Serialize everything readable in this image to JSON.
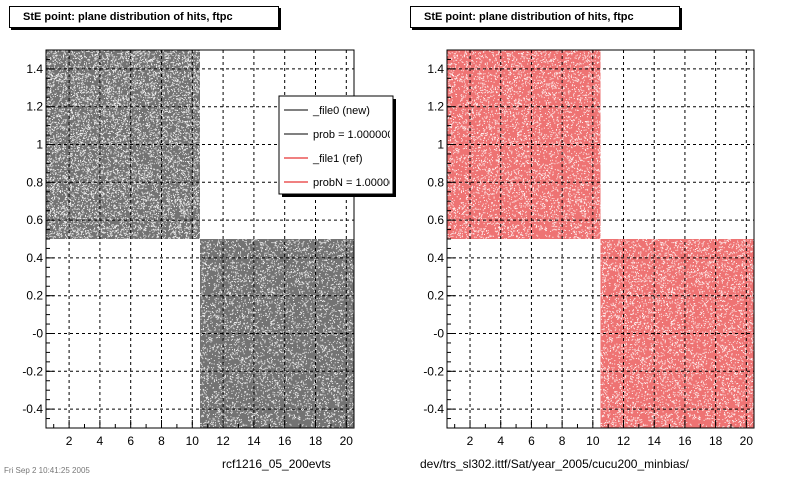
{
  "panels": [
    {
      "title": "StE point: plane distribution of hits, ftpc",
      "footer": "rcf1216_05_200evts",
      "dot_color": "#000000"
    },
    {
      "title": "StE point: plane distribution of hits, ftpc",
      "footer": "dev/trs_sl302.ittf/Sat/year_2005/cucu200_minbias/",
      "dot_color": "#e00000"
    }
  ],
  "legend": {
    "entries": [
      {
        "label": "_file0 (new)",
        "color": "#000000"
      },
      {
        "label": "prob = 1.000000",
        "color": "#000000"
      },
      {
        "label": "_file1 (ref)",
        "color": "#e00000"
      },
      {
        "label": "probN = 1.000000",
        "color": "#e00000"
      }
    ]
  },
  "corner_text": "Fri Sep  2 10:41:25 2005",
  "chart_data": [
    {
      "type": "scatter",
      "title": "StE point: plane distribution of hits, ftpc",
      "xlabel": "",
      "ylabel": "",
      "xlim": [
        0.5,
        20.5
      ],
      "ylim": [
        -0.5,
        1.5
      ],
      "x_ticks": [
        2,
        4,
        6,
        8,
        10,
        12,
        14,
        16,
        18,
        20
      ],
      "y_ticks": [
        -0.4,
        -0.2,
        0,
        0.2,
        0.4,
        0.6,
        0.8,
        1,
        1.2,
        1.4
      ],
      "y_tick_labels": [
        "-0.4",
        "-0.2",
        "-0",
        "0.2",
        "0.4",
        "0.6",
        "0.8",
        "1",
        "1.2",
        "1.4"
      ],
      "grid": true,
      "series": [
        {
          "name": "_file0 (new)",
          "regions": [
            {
              "x": [
                0.5,
                10.5
              ],
              "y": [
                0.5,
                1.5
              ]
            },
            {
              "x": [
                10.5,
                20.5
              ],
              "y": [
                -0.5,
                0.5
              ]
            }
          ]
        }
      ]
    },
    {
      "type": "scatter",
      "title": "StE point: plane distribution of hits, ftpc",
      "xlabel": "",
      "ylabel": "",
      "xlim": [
        0.5,
        20.5
      ],
      "ylim": [
        -0.5,
        1.5
      ],
      "x_ticks": [
        2,
        4,
        6,
        8,
        10,
        12,
        14,
        16,
        18,
        20
      ],
      "y_ticks": [
        -0.4,
        -0.2,
        0,
        0.2,
        0.4,
        0.6,
        0.8,
        1,
        1.2,
        1.4
      ],
      "y_tick_labels": [
        "-0.4",
        "-0.2",
        "-0",
        "0.2",
        "0.4",
        "0.6",
        "0.8",
        "1",
        "1.2",
        "1.4"
      ],
      "grid": true,
      "series": [
        {
          "name": "_file1 (ref)",
          "regions": [
            {
              "x": [
                0.5,
                10.5
              ],
              "y": [
                0.5,
                1.5
              ]
            },
            {
              "x": [
                10.5,
                20.5
              ],
              "y": [
                -0.5,
                0.5
              ]
            }
          ]
        }
      ]
    }
  ]
}
